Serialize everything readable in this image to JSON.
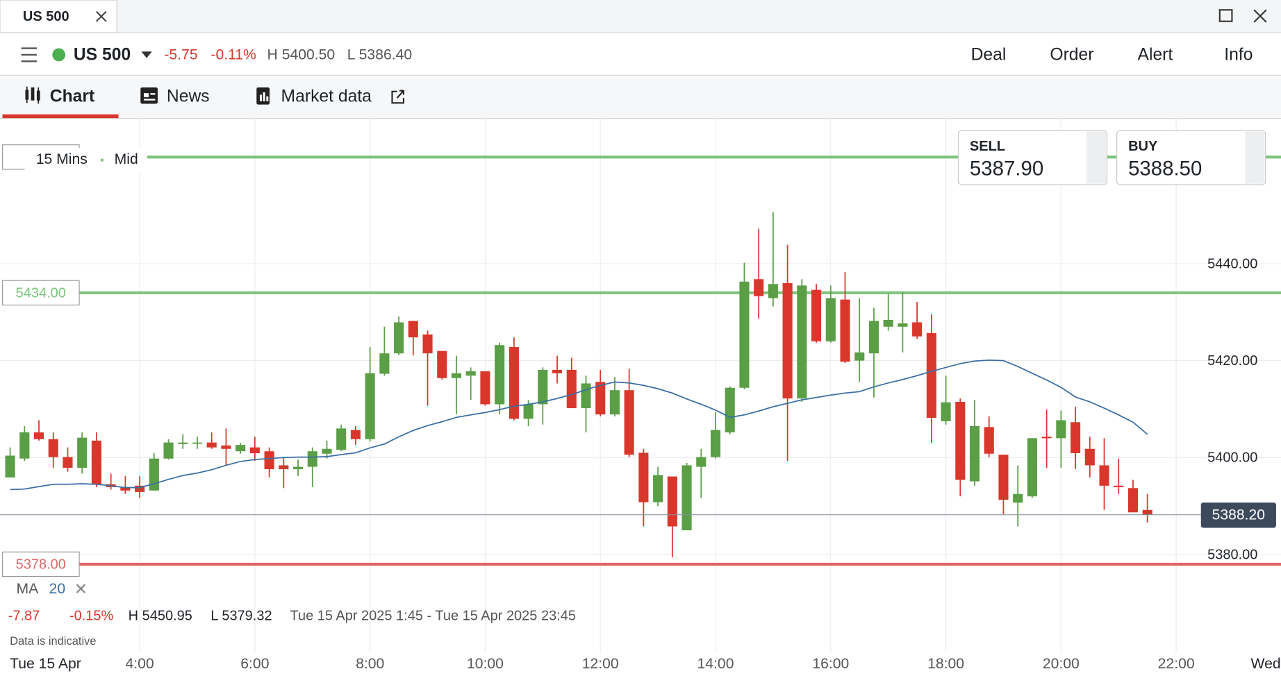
{
  "window": {
    "tab": "US 500"
  },
  "instrument_bar": {
    "name": "US 500",
    "change": "-5.75",
    "change_pct": "-0.11%",
    "high": "H 5400.50",
    "low": "L 5386.40",
    "actions": [
      "Deal",
      "Order",
      "Alert",
      "Info"
    ]
  },
  "tabs": [
    "Chart",
    "News",
    "Market data"
  ],
  "quote": {
    "sell_label": "SELL",
    "sell": "5387.90",
    "buy_label": "BUY",
    "buy": "5388.50"
  },
  "chart_data": {
    "type": "candlestick",
    "interval": "15 Mins",
    "price_type": "Mid",
    "x": [
      1.75,
      2,
      2.25,
      2.5,
      2.75,
      3,
      3.25,
      3.5,
      3.75,
      4,
      4.25,
      4.5,
      4.75,
      5,
      5.25,
      5.5,
      5.75,
      6,
      6.25,
      6.5,
      6.75,
      7,
      7.25,
      7.5,
      7.75,
      8,
      8.25,
      8.5,
      8.75,
      9,
      9.25,
      9.5,
      9.75,
      10,
      10.25,
      10.5,
      10.75,
      11,
      11.25,
      11.5,
      11.75,
      12,
      12.25,
      12.5,
      12.75,
      13,
      13.25,
      13.5,
      13.75,
      14,
      14.25,
      14.5,
      14.75,
      15,
      15.25,
      15.5,
      15.75,
      16,
      16.25,
      16.5,
      16.75,
      17,
      17.25,
      17.5,
      17.75,
      18,
      18.25,
      18.5,
      18.75,
      19,
      19.25,
      19.5,
      19.75,
      20,
      20.25,
      20.5,
      20.75,
      21,
      21.25,
      21.5
    ],
    "open": [
      5395.9,
      5399.8,
      5405.2,
      5403.8,
      5400.1,
      5397.9,
      5403.5,
      5394.5,
      5393.9,
      5394.2,
      5393.2,
      5399.8,
      5402.8,
      5403.0,
      5403.1,
      5402.5,
      5401.3,
      5402.1,
      5401.3,
      5398.4,
      5397.6,
      5398.1,
      5400.8,
      5401.6,
      5405.7,
      5403.8,
      5417.3,
      5421.5,
      5428.2,
      5425.4,
      5422.0,
      5416.4,
      5416.9,
      5417.8,
      5411.0,
      5422.8,
      5408.0,
      5411.0,
      5418.1,
      5418.1,
      5410.2,
      5415.6,
      5408.9,
      5413.9,
      5401.0,
      5390.8,
      5396.1,
      5385.0,
      5398.1,
      5400.1,
      5405.2,
      5414.4,
      5436.8,
      5432.9,
      5436.0,
      5412.2,
      5434.6,
      5424.0,
      5432.6,
      5420.0,
      5421.5,
      5427.0,
      5427.0,
      5427.9,
      5425.7,
      5407.5,
      5411.5,
      5395.1,
      5406.3,
      5400.6,
      5390.7,
      5392.0,
      5404.3,
      5404.0,
      5407.3,
      5401.8,
      5398.4,
      5394.2,
      5393.7,
      5389.2
    ],
    "high": [
      5402.1,
      5406.5,
      5407.7,
      5405.2,
      5402.1,
      5405.2,
      5405.2,
      5396.7,
      5396.2,
      5396.2,
      5400.9,
      5403.8,
      5404.8,
      5404.3,
      5405.2,
      5406.0,
      5403.0,
      5404.3,
      5402.1,
      5400.1,
      5399.6,
      5402.1,
      5403.5,
      5406.8,
      5406.5,
      5422.8,
      5427.0,
      5429.1,
      5428.2,
      5426.2,
      5422.0,
      5421.0,
      5418.6,
      5417.8,
      5423.7,
      5424.8,
      5411.9,
      5418.6,
      5421.0,
      5420.6,
      5416.9,
      5418.1,
      5416.6,
      5418.3,
      5401.8,
      5398.1,
      5396.1,
      5398.9,
      5401.8,
      5409.4,
      5414.7,
      5440.2,
      5447.2,
      5450.6,
      5443.9,
      5436.8,
      5435.8,
      5435.5,
      5438.3,
      5432.9,
      5430.9,
      5433.8,
      5434.1,
      5432.1,
      5429.6,
      5416.9,
      5412.2,
      5411.9,
      5408.5,
      5400.6,
      5398.4,
      5404.0,
      5409.9,
      5409.7,
      5410.5,
      5404.3,
      5404.0,
      5399.8,
      5395.4,
      5392.5
    ],
    "low": [
      5395.9,
      5399.3,
      5403.5,
      5397.9,
      5397.1,
      5396.7,
      5393.9,
      5393.4,
      5392.5,
      5391.7,
      5393.2,
      5399.6,
      5401.8,
      5401.8,
      5401.8,
      5398.4,
      5400.8,
      5399.3,
      5395.9,
      5393.7,
      5396.2,
      5393.9,
      5399.8,
      5401.3,
      5402.6,
      5403.3,
      5416.9,
      5421.1,
      5421.1,
      5410.7,
      5416.1,
      5408.9,
      5411.9,
      5410.7,
      5408.9,
      5407.7,
      5406.5,
      5406.8,
      5415.3,
      5410.2,
      5405.2,
      5408.5,
      5408.5,
      5400.1,
      5385.8,
      5390.0,
      5379.4,
      5385.0,
      5391.7,
      5399.8,
      5404.8,
      5414.1,
      5428.7,
      5431.2,
      5399.3,
      5411.5,
      5423.7,
      5423.7,
      5419.5,
      5415.6,
      5412.4,
      5426.2,
      5421.7,
      5424.5,
      5403.0,
      5406.8,
      5392.0,
      5394.2,
      5400.1,
      5388.3,
      5385.8,
      5391.7,
      5397.9,
      5397.9,
      5397.6,
      5395.9,
      5389.2,
      5392.5,
      5388.7,
      5386.6
    ],
    "close": [
      5400.4,
      5405.2,
      5403.8,
      5400.1,
      5397.9,
      5404.1,
      5394.5,
      5393.9,
      5393.2,
      5392.9,
      5399.8,
      5403.1,
      5403.1,
      5403.1,
      5402.1,
      5401.8,
      5402.6,
      5400.9,
      5397.6,
      5397.6,
      5398.1,
      5401.3,
      5401.8,
      5406.0,
      5403.8,
      5417.4,
      5421.5,
      5427.9,
      5424.8,
      5421.5,
      5416.4,
      5417.4,
      5417.8,
      5411.0,
      5423.2,
      5408.0,
      5411.0,
      5418.1,
      5417.4,
      5410.2,
      5415.3,
      5408.9,
      5413.9,
      5400.6,
      5390.8,
      5396.4,
      5385.8,
      5398.4,
      5400.1,
      5405.7,
      5414.4,
      5436.3,
      5433.3,
      5435.8,
      5412.2,
      5435.5,
      5424.0,
      5432.9,
      5419.8,
      5421.7,
      5428.2,
      5428.4,
      5427.7,
      5425.0,
      5408.2,
      5411.4,
      5395.4,
      5406.5,
      5400.8,
      5391.3,
      5392.5,
      5404.0,
      5404.0,
      5407.7,
      5400.9,
      5398.4,
      5394.2,
      5393.9,
      5388.7,
      5388.2
    ],
    "up_color": "#5a9e46",
    "down_color": "#d9372c",
    "ma": {
      "name": "MA",
      "period": 20,
      "color": "#3a6ea5",
      "values": [
        5393.4,
        5393.5,
        5394.0,
        5394.5,
        5394.5,
        5394.6,
        5394.5,
        5394.2,
        5393.8,
        5393.8,
        5394.6,
        5395.5,
        5396.3,
        5396.8,
        5397.5,
        5398.4,
        5399.2,
        5399.6,
        5399.8,
        5400.0,
        5400.1,
        5400.1,
        5400.2,
        5400.6,
        5401.0,
        5402.0,
        5402.8,
        5404.3,
        5405.6,
        5406.6,
        5407.4,
        5408.3,
        5408.8,
        5409.3,
        5409.9,
        5410.6,
        5411.0,
        5411.5,
        5412.2,
        5413.0,
        5414.0,
        5414.9,
        5415.6,
        5415.4,
        5414.9,
        5414.2,
        5413.3,
        5412.1,
        5411.0,
        5409.8,
        5408.3,
        5408.8,
        5409.6,
        5410.5,
        5411.2,
        5411.9,
        5412.4,
        5412.9,
        5413.3,
        5413.6,
        5414.6,
        5415.4,
        5416.1,
        5416.9,
        5417.8,
        5418.6,
        5419.4,
        5419.9,
        5420.1,
        5420.0,
        5418.8,
        5417.4,
        5416.0,
        5414.5,
        5412.5,
        5411.5,
        5410.2,
        5408.8,
        5407.3,
        5404.8
      ]
    },
    "xlim": [
      1.574,
      23.82
    ],
    "xticks": [
      {
        "value": 4,
        "label": "4:00"
      },
      {
        "value": 6,
        "label": "6:00"
      },
      {
        "value": 8,
        "label": "8:00"
      },
      {
        "value": 10,
        "label": "10:00"
      },
      {
        "value": 12,
        "label": "12:00"
      },
      {
        "value": 14,
        "label": "14:00"
      },
      {
        "value": 16,
        "label": "16:00"
      },
      {
        "value": 18,
        "label": "18:00"
      },
      {
        "value": 20,
        "label": "20:00"
      },
      {
        "value": 22,
        "label": "22:00"
      }
    ],
    "ylim": [
      5375.5,
      5469.8
    ],
    "yticks": [
      {
        "value": 5380,
        "label": "5380.00"
      },
      {
        "value": 5400,
        "label": "5400.00"
      },
      {
        "value": 5420,
        "label": "5420.00"
      },
      {
        "value": 5440,
        "label": "5440.00"
      }
    ],
    "grid": true,
    "levels": [
      {
        "value": 5462,
        "color": "#7cc47c"
      },
      {
        "value": 5434,
        "label": "5434.00",
        "color": "#7cc47c"
      },
      {
        "value": 5378,
        "label": "5378.00",
        "color": "#e06666"
      }
    ],
    "last_price": {
      "value": 5388.2,
      "label": "5388.20"
    },
    "date_labels": [
      "Tue 15 Apr",
      "Wed"
    ]
  },
  "stats": {
    "change": "-7.87",
    "change_pct": "-0.15%",
    "high": "H 5450.95",
    "low": "L 5379.32",
    "range": "Tue 15 Apr 2025 1:45 - Tue 15 Apr 2025 23:45"
  },
  "note": "Data is indicative"
}
